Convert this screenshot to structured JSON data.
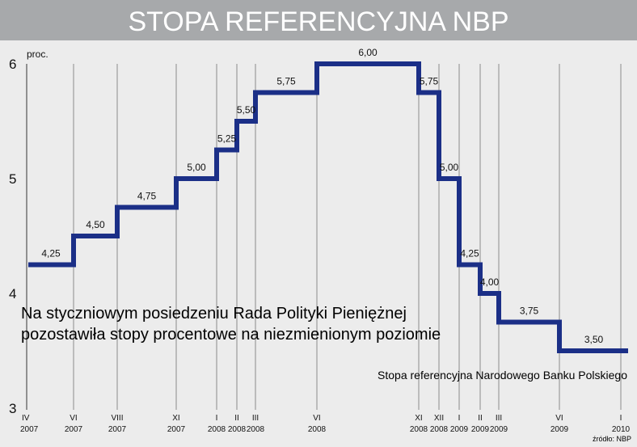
{
  "chart_data": {
    "type": "line",
    "title": "STOPA REFERENCYJNA NBP",
    "subtitle": "Stopa referencyjna Narodowego Banku Polskiego",
    "headline_lines": [
      "Na styczniowym posiedzeniu Rada Polityki Pieniężnej",
      "pozostawiła stopy procentowe na niezmienionym poziomie"
    ],
    "source": "źródło: NBP",
    "ylabel": "proc.",
    "ylim": [
      3,
      6
    ],
    "yticks": [
      3,
      4,
      5,
      6
    ],
    "grid": "vertical",
    "x_axis_type": "time",
    "x_ticks": [
      {
        "month": "IV",
        "year": "2007",
        "date": "2007-04"
      },
      {
        "month": "VI",
        "year": "2007",
        "date": "2007-06"
      },
      {
        "month": "VIII",
        "year": "2007",
        "date": "2007-08"
      },
      {
        "month": "XI",
        "year": "2007",
        "date": "2007-11"
      },
      {
        "month": "I",
        "year": "2008",
        "date": "2008-01"
      },
      {
        "month": "II",
        "year": "2008",
        "date": "2008-02"
      },
      {
        "month": "III",
        "year": "2008",
        "date": "2008-03"
      },
      {
        "month": "VI",
        "year": "2008",
        "date": "2008-06"
      },
      {
        "month": "XI",
        "year": "2008",
        "date": "2008-11"
      },
      {
        "month": "XII",
        "year": "2008",
        "date": "2008-12"
      },
      {
        "month": "I",
        "year": "2009",
        "date": "2009-01"
      },
      {
        "month": "II",
        "year": "2009",
        "date": "2009-02"
      },
      {
        "month": "III",
        "year": "2009",
        "date": "2009-03"
      },
      {
        "month": "VI",
        "year": "2009",
        "date": "2009-06"
      },
      {
        "month": "I",
        "year": "2010",
        "date": "2010-01"
      }
    ],
    "series": [
      {
        "points": [
          {
            "date": "2007-04",
            "value": 4.25,
            "label": "4,25"
          },
          {
            "date": "2007-06",
            "value": 4.5,
            "label": "4,50"
          },
          {
            "date": "2007-08",
            "value": 4.75,
            "label": "4,75"
          },
          {
            "date": "2007-11",
            "value": 5.0,
            "label": "5,00"
          },
          {
            "date": "2008-01",
            "value": 5.25,
            "label": "5,25"
          },
          {
            "date": "2008-02",
            "value": 5.5,
            "label": "5,50"
          },
          {
            "date": "2008-03",
            "value": 5.75,
            "label": "5,75"
          },
          {
            "date": "2008-06",
            "value": 6.0,
            "label": "6,00"
          },
          {
            "date": "2008-11",
            "value": 5.75,
            "label": "5,75"
          },
          {
            "date": "2008-12",
            "value": 5.0,
            "label": "5,00"
          },
          {
            "date": "2009-01",
            "value": 4.25,
            "label": "4,25"
          },
          {
            "date": "2009-02",
            "value": 4.0,
            "label": "4,00"
          },
          {
            "date": "2009-03",
            "value": 3.75,
            "label": "3,75"
          },
          {
            "date": "2009-06",
            "value": 3.5,
            "label": "3,50"
          },
          {
            "date": "2010-01",
            "value": 3.5
          }
        ],
        "color": "#1b2f87"
      }
    ]
  },
  "colors": {
    "title_bar": "#a7a9ab",
    "background": "#ececec",
    "series": "#1b2f87",
    "grid": "#9b9b9b"
  }
}
